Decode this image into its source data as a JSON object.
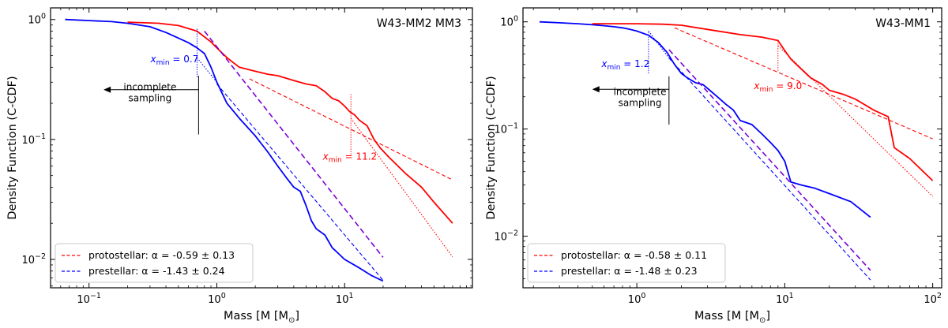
{
  "chart_data": [
    {
      "type": "line",
      "title": "W43-MM2 MM3",
      "xlabel": "Mass [M_⊙]",
      "ylabel": "Density Function (C-CDF)",
      "xscale": "log",
      "yscale": "log",
      "xlim": [
        0.05,
        100
      ],
      "ylim": [
        0.0058,
        1.25
      ],
      "xticks": [
        {
          "value": 0.1,
          "base": "10",
          "exp": "−1"
        },
        {
          "value": 1,
          "base": "10",
          "exp": "0"
        },
        {
          "value": 10,
          "base": "10",
          "exp": "1"
        }
      ],
      "yticks": [
        {
          "value": 0.01,
          "base": "10",
          "exp": "−2"
        },
        {
          "value": 0.1,
          "base": "10",
          "exp": "−1"
        },
        {
          "value": 1,
          "base": "10",
          "exp": "0"
        }
      ],
      "legend_position": "lower-left",
      "legend": [
        {
          "label": "protostellar: α = -0.59 ± 0.13",
          "color": "#ff0000"
        },
        {
          "label": "prestellar: α = -1.43 ± 0.24",
          "color": "#0000ff"
        }
      ],
      "series": [
        {
          "name": "prestellar",
          "color": "#0000ff",
          "style": "solid",
          "x": [
            0.065,
            0.1,
            0.15,
            0.2,
            0.3,
            0.4,
            0.5,
            0.6,
            0.7,
            0.8,
            0.9,
            1.0,
            1.2,
            1.5,
            2.0,
            2.5,
            3.0,
            3.5,
            4.0,
            4.5,
            5.0,
            5.5,
            6.0,
            7.0,
            8.0,
            8.5,
            10,
            13,
            16,
            20
          ],
          "y": [
            1.0,
            0.98,
            0.96,
            0.93,
            0.87,
            0.78,
            0.7,
            0.64,
            0.58,
            0.52,
            0.4,
            0.3,
            0.2,
            0.15,
            0.107,
            0.079,
            0.06,
            0.048,
            0.04,
            0.037,
            0.028,
            0.021,
            0.018,
            0.016,
            0.0125,
            0.0118,
            0.01,
            0.0085,
            0.0074,
            0.0066
          ]
        },
        {
          "name": "protostellar",
          "color": "#ff0000",
          "style": "solid",
          "x": [
            0.2,
            0.35,
            0.5,
            0.7,
            0.9,
            1.0,
            1.2,
            1.5,
            2.0,
            2.5,
            3.0,
            4.0,
            5.0,
            6.0,
            7.0,
            8.0,
            9.0,
            10.0,
            11.0,
            12.0,
            13.0,
            15.0,
            17.0,
            19.0,
            22.0,
            30.0,
            40.0,
            50.0,
            70.0
          ],
          "y": [
            0.95,
            0.93,
            0.89,
            0.8,
            0.65,
            0.58,
            0.48,
            0.4,
            0.37,
            0.35,
            0.34,
            0.31,
            0.29,
            0.28,
            0.25,
            0.22,
            0.21,
            0.19,
            0.17,
            0.16,
            0.145,
            0.13,
            0.1,
            0.085,
            0.072,
            0.052,
            0.04,
            0.03,
            0.02
          ]
        },
        {
          "name": "protostellar power-law fit",
          "color": "#ff0000",
          "style": "dashed",
          "x": [
            1.8,
            70
          ],
          "y": [
            0.32,
            0.046
          ]
        },
        {
          "name": "protostellar fit extension",
          "color": "#ff0000",
          "style": "dotted",
          "x": [
            11.2,
            70
          ],
          "y": [
            0.15,
            0.0105
          ]
        },
        {
          "name": "prestellar power-law fit",
          "color": "#0000ff",
          "style": "dashed",
          "x": [
            1.0,
            20
          ],
          "y": [
            0.29,
            0.0067
          ]
        },
        {
          "name": "prestellar fit extension",
          "color": "#0000ff",
          "style": "dotted",
          "x": [
            0.7,
            1.0
          ],
          "y": [
            0.48,
            0.3
          ]
        },
        {
          "name": "combined fit",
          "color": "#7b00d8",
          "style": "dashed",
          "x": [
            0.8,
            20
          ],
          "y": [
            0.8,
            0.0104
          ]
        }
      ],
      "markers": [
        {
          "x": 0.7,
          "color": "#0000ff",
          "y_from": 0.33,
          "y_to": 0.86
        },
        {
          "x": 11.2,
          "color": "#ff0000",
          "y_from": 0.075,
          "y_to": 0.24
        }
      ],
      "annotations": [
        {
          "text": "x_min = 0.7",
          "sub": "min",
          "value": "= 0.7",
          "color": "#0000ff",
          "x": 0.72,
          "y": 0.44,
          "align": "end"
        },
        {
          "text": "x_min = 11.2",
          "sub": "min",
          "value": "= 11.2",
          "color": "#ff0000",
          "x": 11.0,
          "y": 0.068,
          "align": "middle"
        },
        {
          "text": "incomplete sampling",
          "line1": "incomplete",
          "line2": "sampling",
          "color": "#000000",
          "x": 0.3,
          "y": 0.25
        }
      ],
      "incomplete_marker": {
        "x": 0.72,
        "y_from": 0.11,
        "y_to": 0.34,
        "arrow_to_x": 0.13,
        "arrow_y": 0.26
      }
    },
    {
      "type": "line",
      "title": "W43-MM1",
      "xlabel": "Mass [M_⊙]",
      "ylabel": "Density Function (C-CDF)",
      "xscale": "log",
      "yscale": "log",
      "xlim": [
        0.17,
        115
      ],
      "ylim": [
        0.0033,
        1.35
      ],
      "xticks": [
        {
          "value": 1,
          "base": "10",
          "exp": "0"
        },
        {
          "value": 10,
          "base": "10",
          "exp": "1"
        },
        {
          "value": 100,
          "base": "10",
          "exp": "2"
        }
      ],
      "yticks": [
        {
          "value": 0.01,
          "base": "10",
          "exp": "−2"
        },
        {
          "value": 0.1,
          "base": "10",
          "exp": "−1"
        },
        {
          "value": 1,
          "base": "10",
          "exp": "0"
        }
      ],
      "legend_position": "lower-left",
      "legend": [
        {
          "label": "protostellar: α = -0.58 ± 0.11",
          "color": "#ff0000"
        },
        {
          "label": "prestellar: α = -1.48 ± 0.23",
          "color": "#0000ff"
        }
      ],
      "series": [
        {
          "name": "prestellar",
          "color": "#0000ff",
          "style": "solid",
          "x": [
            0.22,
            0.3,
            0.4,
            0.5,
            0.6,
            0.7,
            0.8,
            0.9,
            1.0,
            1.2,
            1.4,
            1.6,
            1.8,
            2.0,
            2.2,
            2.5,
            2.8,
            3.0,
            3.5,
            4.0,
            4.5,
            5.0,
            6.0,
            7.0,
            8.0,
            9.0,
            10,
            11,
            13,
            16,
            20,
            28,
            38
          ],
          "y": [
            1.0,
            0.98,
            0.96,
            0.94,
            0.92,
            0.9,
            0.88,
            0.85,
            0.82,
            0.75,
            0.64,
            0.52,
            0.4,
            0.33,
            0.3,
            0.27,
            0.26,
            0.24,
            0.2,
            0.17,
            0.15,
            0.12,
            0.11,
            0.09,
            0.075,
            0.063,
            0.05,
            0.032,
            0.03,
            0.028,
            0.025,
            0.021,
            0.015
          ]
        },
        {
          "name": "protostellar",
          "color": "#ff0000",
          "style": "solid",
          "x": [
            0.5,
            1.0,
            1.5,
            2.0,
            3.0,
            5.0,
            7.0,
            9.0,
            10,
            11,
            12,
            13,
            15,
            18,
            20,
            25,
            30,
            40,
            50,
            55,
            70,
            100
          ],
          "y": [
            0.96,
            0.96,
            0.95,
            0.93,
            0.85,
            0.76,
            0.72,
            0.67,
            0.54,
            0.45,
            0.4,
            0.36,
            0.3,
            0.26,
            0.23,
            0.21,
            0.19,
            0.15,
            0.13,
            0.067,
            0.053,
            0.033
          ]
        },
        {
          "name": "protostellar power-law fit",
          "color": "#ff0000",
          "style": "dashed",
          "x": [
            1.8,
            100
          ],
          "y": [
            0.88,
            0.081
          ]
        },
        {
          "name": "protostellar fit extension",
          "color": "#ff0000",
          "style": "dotted",
          "x": [
            9.0,
            100
          ],
          "y": [
            0.6,
            0.0235
          ]
        },
        {
          "name": "prestellar power-law fit",
          "color": "#0000ff",
          "style": "dashed",
          "x": [
            1.65,
            38
          ],
          "y": [
            0.46,
            0.0039
          ]
        },
        {
          "name": "prestellar fit extension",
          "color": "#0000ff",
          "style": "dotted",
          "x": [
            1.2,
            1.65
          ],
          "y": [
            0.82,
            0.46
          ]
        },
        {
          "name": "combined fit",
          "color": "#7b00d8",
          "style": "dashed",
          "x": [
            1.65,
            38
          ],
          "y": [
            0.55,
            0.0048
          ]
        }
      ],
      "markers": [
        {
          "x": 1.2,
          "color": "#0000ff",
          "y_from": 0.33,
          "y_to": 0.82
        },
        {
          "x": 9.0,
          "color": "#ff0000",
          "y_from": 0.35,
          "y_to": 0.66
        }
      ],
      "annotations": [
        {
          "text": "x_min = 1.2",
          "sub": "min",
          "value": "= 1.2",
          "color": "#0000ff",
          "x": 1.22,
          "y": 0.38,
          "align": "end"
        },
        {
          "text": "x_min = 9.0",
          "sub": "min",
          "value": "= 9.0",
          "color": "#ff0000",
          "x": 9.0,
          "y": 0.235,
          "align": "middle"
        },
        {
          "text": "incomplete sampling",
          "line1": "incomplete",
          "line2": "sampling",
          "color": "#000000",
          "x": 1.05,
          "y": 0.2
        }
      ],
      "incomplete_marker": {
        "x": 1.65,
        "y_from": 0.11,
        "y_to": 0.31,
        "arrow_to_x": 0.5,
        "arrow_y": 0.235
      }
    }
  ]
}
